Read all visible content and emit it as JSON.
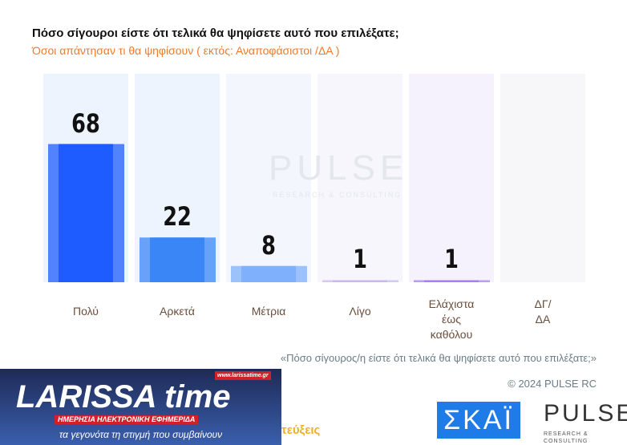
{
  "chart_data": {
    "type": "bar",
    "title": "Πόσο σίγουροι είστε ότι τελικά θα ψηφίσετε αυτό που επιλέξατε;",
    "subtitle": "Όσοι απάντησαν τι θα ψηφίσουν ( εκτός: Αναποφάσιστοι /ΔΑ )",
    "categories": [
      "Πολύ",
      "Αρκετά",
      "Μέτρια",
      "Λίγο",
      "Ελάχιστα έως καθόλου",
      "ΔΓ/ ΔΑ"
    ],
    "category_lines": [
      [
        "Πολύ"
      ],
      [
        "Αρκετά"
      ],
      [
        "Μέτρια"
      ],
      [
        "Λίγο"
      ],
      [
        "Ελάχιστα",
        "έως",
        "καθόλου"
      ],
      [
        "ΔΓ/",
        "ΔΑ"
      ]
    ],
    "values": [
      68,
      22,
      8,
      1,
      1,
      null
    ],
    "value_labels": [
      "68",
      "22",
      "8",
      "1",
      "1",
      ""
    ],
    "ylim": [
      0,
      100
    ],
    "colors": [
      "#1f5cff",
      "#3a86f7",
      "#7fb0fb",
      "#c9b8f0",
      "#a77ff0",
      "#eeeeee"
    ],
    "column_bg": [
      "#eef4fd",
      "#eef4fd",
      "#f3f6fd",
      "#f6f6fc",
      "#f6f2fd",
      "#f7f7f9"
    ]
  },
  "note": "«Πόσο σίγουρος/η είστε ότι τελικά θα ψηφίσετε αυτό που επιλέξατε;»",
  "copyright": "© 2024 PULSE RC",
  "watermark": {
    "main": "PULSE",
    "sub": "RESEARCH & CONSULTING"
  },
  "banner": {
    "logo": "LARISSA time",
    "url": "www.larissatime.gr",
    "tagline_red": "ΗΜΕΡΗΣΙΑ ΗΛΕΚΤΡΟΝΙΚΗ ΕΦΗΜΕΡΙΔΑ",
    "tagline": "τα γεγονότα τη στιγμή που συμβαίνουν"
  },
  "cut_text": "τεύξεις",
  "logos": {
    "skai": "ΣΚΑΪ",
    "pulse": "PULSE",
    "pulse_sub": "RESEARCH & CONSULTING"
  }
}
